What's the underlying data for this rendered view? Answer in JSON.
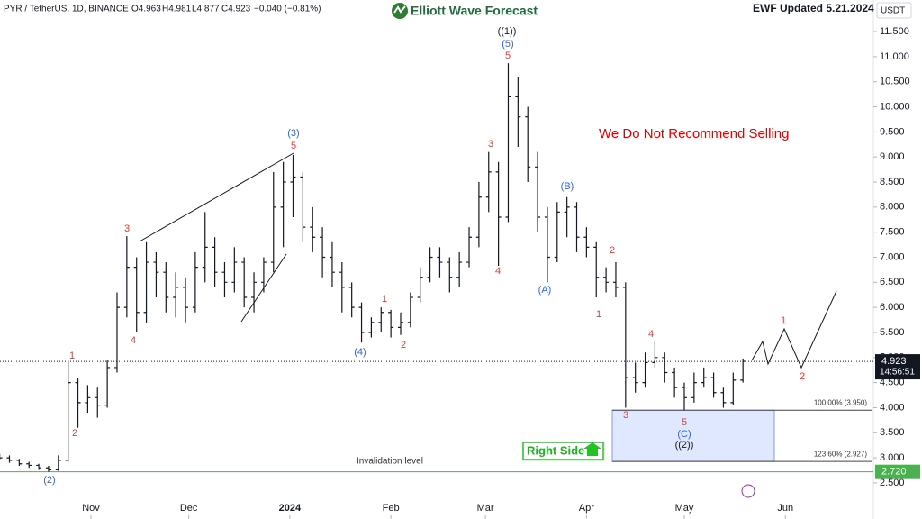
{
  "header": {
    "symbol": "PYR / TetherUS, 1D, BINANCE",
    "open": "O4.963",
    "high": "H4.981",
    "low": "L4.877",
    "close": "C4.923",
    "change": "−0.040 (−0.81%)"
  },
  "brand": "Elliott Wave Forecast",
  "updated": "EWF Updated 5.21.2024",
  "currency": "USDT",
  "note": "We Do Not Recommend Selling",
  "right_side": "Right Side",
  "invalidation_text": "Invalidation level",
  "chart_data": {
    "type": "ohlc",
    "color": "#131722",
    "xlim": [
      3.1,
      271
    ],
    "ylim": [
      1.78,
      12.13
    ],
    "xticks": [
      {
        "value": 31,
        "label": "Nov"
      },
      {
        "value": 61,
        "label": "Dec"
      },
      {
        "value": 92,
        "label": "2024"
      },
      {
        "value": 123,
        "label": "Feb"
      },
      {
        "value": 152,
        "label": "Mar"
      },
      {
        "value": 183,
        "label": "Apr"
      },
      {
        "value": 213,
        "label": "May"
      },
      {
        "value": 244,
        "label": "Jun"
      }
    ],
    "yticks": [
      {
        "value": 2.5,
        "label": "2.500"
      },
      {
        "value": 3,
        "label": "3.000"
      },
      {
        "value": 3.5,
        "label": "3.500"
      },
      {
        "value": 4,
        "label": "4.000"
      },
      {
        "value": 4.5,
        "label": "4.500"
      },
      {
        "value": 5,
        "label": "5.000"
      },
      {
        "value": 5.5,
        "label": "5.500"
      },
      {
        "value": 6,
        "label": "6.000"
      },
      {
        "value": 6.5,
        "label": "6.500"
      },
      {
        "value": 7,
        "label": "7.000"
      },
      {
        "value": 7.5,
        "label": "7.500"
      },
      {
        "value": 8,
        "label": "8.000"
      },
      {
        "value": 8.5,
        "label": "8.500"
      },
      {
        "value": 9,
        "label": "9.000"
      },
      {
        "value": 9.5,
        "label": "9.500"
      },
      {
        "value": 10,
        "label": "10.000"
      },
      {
        "value": 10.5,
        "label": "10.500"
      },
      {
        "value": 11,
        "label": "11.000"
      },
      {
        "value": 11.5,
        "label": "11.500"
      }
    ],
    "x": [
      3,
      6,
      9,
      12,
      15,
      18,
      21,
      24,
      27,
      30,
      33,
      36,
      39,
      42,
      45,
      48,
      51,
      54,
      57,
      60,
      63,
      66,
      69,
      72,
      75,
      78,
      81,
      84,
      87,
      90,
      93,
      96,
      99,
      102,
      105,
      108,
      111,
      114,
      117,
      120,
      123,
      126,
      129,
      132,
      135,
      138,
      141,
      144,
      147,
      150,
      153,
      156,
      159,
      162,
      165,
      168,
      171,
      174,
      177,
      180,
      183,
      186,
      189,
      192,
      195,
      198,
      201,
      204,
      207,
      210,
      213,
      216,
      219,
      222,
      225,
      228,
      231
    ],
    "ohlc": [
      [
        3.02,
        3.08,
        2.95,
        3.0
      ],
      [
        3.0,
        3.05,
        2.9,
        2.95
      ],
      [
        2.95,
        2.98,
        2.84,
        2.88
      ],
      [
        2.88,
        2.92,
        2.8,
        2.85
      ],
      [
        2.85,
        2.88,
        2.76,
        2.8
      ],
      [
        2.8,
        2.84,
        2.72,
        2.76
      ],
      [
        2.76,
        3.05,
        2.74,
        2.95
      ],
      [
        2.95,
        4.94,
        2.92,
        4.5
      ],
      [
        4.5,
        4.6,
        3.6,
        4.1
      ],
      [
        4.1,
        4.45,
        3.9,
        4.2
      ],
      [
        4.2,
        4.4,
        3.8,
        4.05
      ],
      [
        4.05,
        4.95,
        4.0,
        4.8
      ],
      [
        4.8,
        6.3,
        4.7,
        6.0
      ],
      [
        6.0,
        7.42,
        5.8,
        6.8
      ],
      [
        6.8,
        7.0,
        5.5,
        5.9
      ],
      [
        5.9,
        7.3,
        5.7,
        6.9
      ],
      [
        6.9,
        7.1,
        6.2,
        6.7
      ],
      [
        6.7,
        6.9,
        5.9,
        6.2
      ],
      [
        6.2,
        6.7,
        5.8,
        6.4
      ],
      [
        6.4,
        6.6,
        5.7,
        6.0
      ],
      [
        6.0,
        7.1,
        5.9,
        6.8
      ],
      [
        6.8,
        7.9,
        6.5,
        7.2
      ],
      [
        7.2,
        7.4,
        6.4,
        6.7
      ],
      [
        6.7,
        6.9,
        6.2,
        6.5
      ],
      [
        6.5,
        7.2,
        6.3,
        6.9
      ],
      [
        6.9,
        7.0,
        6.0,
        6.2
      ],
      [
        6.2,
        6.7,
        5.9,
        6.5
      ],
      [
        6.5,
        7.0,
        6.3,
        6.9
      ],
      [
        6.9,
        8.7,
        6.7,
        8.0
      ],
      [
        8.0,
        8.9,
        7.2,
        8.5
      ],
      [
        8.5,
        9.04,
        7.8,
        8.6
      ],
      [
        8.6,
        8.7,
        7.3,
        7.6
      ],
      [
        7.6,
        8.0,
        7.1,
        7.4
      ],
      [
        7.4,
        7.6,
        6.6,
        7.0
      ],
      [
        7.0,
        7.3,
        6.4,
        6.7
      ],
      [
        6.7,
        6.9,
        5.9,
        6.4
      ],
      [
        6.4,
        6.5,
        5.8,
        6.0
      ],
      [
        6.0,
        6.1,
        5.3,
        5.5
      ],
      [
        5.5,
        5.8,
        5.4,
        5.7
      ],
      [
        5.7,
        6.0,
        5.5,
        5.9
      ],
      [
        5.9,
        5.95,
        5.4,
        5.6
      ],
      [
        5.6,
        5.9,
        5.45,
        5.7
      ],
      [
        5.7,
        6.3,
        5.6,
        6.2
      ],
      [
        6.2,
        6.8,
        6.1,
        6.6
      ],
      [
        6.6,
        7.2,
        6.5,
        7.0
      ],
      [
        7.0,
        7.2,
        6.6,
        6.9
      ],
      [
        6.9,
        7.0,
        6.3,
        6.6
      ],
      [
        6.6,
        7.1,
        6.4,
        6.9
      ],
      [
        6.9,
        7.6,
        6.8,
        7.4
      ],
      [
        7.4,
        8.5,
        7.2,
        8.2
      ],
      [
        8.2,
        9.1,
        7.9,
        8.7
      ],
      [
        8.7,
        8.9,
        6.83,
        7.8
      ],
      [
        7.8,
        10.87,
        7.7,
        10.2
      ],
      [
        10.2,
        10.6,
        9.2,
        9.8
      ],
      [
        9.8,
        10.0,
        8.5,
        8.8
      ],
      [
        8.8,
        9.1,
        7.5,
        7.8
      ],
      [
        7.8,
        8.0,
        6.5,
        7.0
      ],
      [
        7.0,
        8.1,
        6.9,
        7.9
      ],
      [
        7.9,
        8.2,
        7.4,
        8.0
      ],
      [
        8.0,
        8.1,
        7.1,
        7.4
      ],
      [
        7.4,
        7.6,
        7.0,
        7.2
      ],
      [
        7.2,
        7.3,
        6.2,
        6.6
      ],
      [
        6.6,
        6.8,
        6.3,
        6.5
      ],
      [
        6.5,
        6.9,
        6.2,
        6.4
      ],
      [
        6.4,
        6.5,
        4.0,
        4.6
      ],
      [
        4.6,
        4.9,
        4.3,
        4.5
      ],
      [
        4.5,
        5.1,
        4.4,
        4.9
      ],
      [
        4.9,
        5.34,
        4.8,
        5.0
      ],
      [
        5.0,
        5.1,
        4.5,
        4.7
      ],
      [
        4.7,
        4.8,
        4.2,
        4.4
      ],
      [
        4.4,
        4.5,
        3.95,
        4.2
      ],
      [
        4.2,
        4.7,
        4.1,
        4.5
      ],
      [
        4.5,
        4.8,
        4.4,
        4.6
      ],
      [
        4.6,
        4.7,
        4.2,
        4.3
      ],
      [
        4.3,
        4.4,
        4.0,
        4.1
      ],
      [
        4.1,
        4.7,
        4.05,
        4.55
      ],
      [
        4.55,
        4.98,
        4.5,
        4.923
      ]
    ],
    "last_price": 4.923,
    "countdown": "14:56:51",
    "invalidation": {
      "value": 2.72,
      "label": "2.720"
    },
    "fib_levels": [
      {
        "value": 3.95,
        "label": "100.00% (3.950)"
      },
      {
        "value": 2.927,
        "label": "123.60% (2.927)"
      }
    ],
    "wave_labels": [
      {
        "text": "(2)",
        "color": "#2962ff"
      },
      {
        "text": "1",
        "color": "#e53935"
      },
      {
        "text": "2",
        "color": "#e53935"
      },
      {
        "text": "3",
        "color": "#e53935"
      },
      {
        "text": "4",
        "color": "#e53935"
      },
      {
        "text": "(3)",
        "color": "#2962ff"
      },
      {
        "text": "5",
        "color": "#e53935"
      },
      {
        "text": "(4)",
        "color": "#2962ff"
      },
      {
        "text": "1",
        "color": "#e53935"
      },
      {
        "text": "2",
        "color": "#e53935"
      },
      {
        "text": "3",
        "color": "#e53935"
      },
      {
        "text": "4",
        "color": "#e53935"
      },
      {
        "text": "5",
        "color": "#e53935"
      },
      {
        "text": "(5)",
        "color": "#2962ff"
      },
      {
        "text": "((1))",
        "color": "#131722"
      },
      {
        "text": "(A)",
        "color": "#2962ff"
      },
      {
        "text": "(B)",
        "color": "#2962ff"
      },
      {
        "text": "1",
        "color": "#e53935"
      },
      {
        "text": "2",
        "color": "#e53935"
      },
      {
        "text": "3",
        "color": "#e53935"
      },
      {
        "text": "4",
        "color": "#e53935"
      },
      {
        "text": "5",
        "color": "#e53935"
      },
      {
        "text": "(C)",
        "color": "#2962ff"
      },
      {
        "text": "((2))",
        "color": "#131722"
      },
      {
        "text": "1",
        "color": "#e53935"
      },
      {
        "text": "2",
        "color": "#e53935"
      }
    ]
  }
}
